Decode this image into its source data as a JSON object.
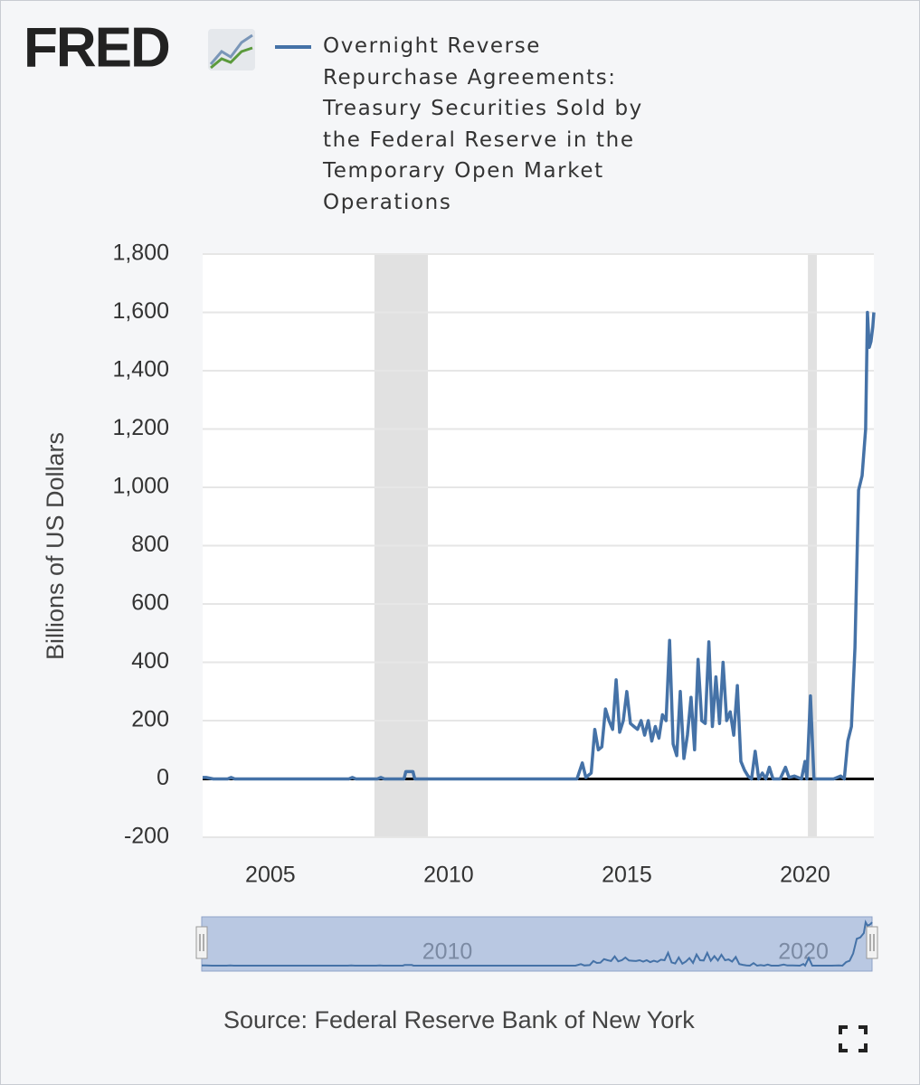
{
  "logo": "FRED",
  "chart_data": {
    "type": "line",
    "x_is_year": true,
    "series": [
      {
        "name": "Overnight Reverse Repurchase Agreements: Treasury Securities Sold by the Federal Reserve in the Temporary Open Market Operations",
        "color": "#4572a7",
        "x": [
          2003.1,
          2003.2,
          2003.4,
          2003.8,
          2003.9,
          2004.0,
          2007.2,
          2007.3,
          2007.4,
          2008.0,
          2008.1,
          2008.2,
          2008.75,
          2008.8,
          2009.0,
          2009.05,
          2013.6,
          2013.75,
          2013.85,
          2014.0,
          2014.1,
          2014.2,
          2014.3,
          2014.4,
          2014.5,
          2014.6,
          2014.7,
          2014.8,
          2014.9,
          2015.0,
          2015.1,
          2015.2,
          2015.3,
          2015.4,
          2015.5,
          2015.6,
          2015.7,
          2015.8,
          2015.9,
          2016.0,
          2016.1,
          2016.2,
          2016.3,
          2016.4,
          2016.5,
          2016.6,
          2016.7,
          2016.8,
          2016.9,
          2017.0,
          2017.1,
          2017.2,
          2017.3,
          2017.4,
          2017.5,
          2017.6,
          2017.7,
          2017.8,
          2017.9,
          2018.0,
          2018.1,
          2018.2,
          2018.3,
          2018.4,
          2018.5,
          2018.6,
          2018.7,
          2018.8,
          2018.9,
          2019.0,
          2019.1,
          2019.3,
          2019.45,
          2019.55,
          2019.7,
          2019.9,
          2020.0,
          2020.05,
          2020.15,
          2020.25,
          2020.5,
          2020.8,
          2021.0,
          2021.1,
          2021.2,
          2021.3,
          2021.4,
          2021.5,
          2021.6,
          2021.7,
          2021.75,
          2021.8,
          2021.85,
          2021.9,
          2021.93
        ],
        "values": [
          5,
          5,
          0,
          0,
          5,
          0,
          0,
          5,
          0,
          0,
          5,
          0,
          0,
          25,
          25,
          0,
          0,
          55,
          5,
          20,
          170,
          100,
          110,
          240,
          200,
          170,
          340,
          160,
          200,
          300,
          190,
          180,
          170,
          200,
          150,
          200,
          130,
          180,
          140,
          220,
          200,
          475,
          120,
          80,
          300,
          70,
          150,
          280,
          100,
          410,
          200,
          190,
          470,
          180,
          350,
          190,
          400,
          200,
          230,
          150,
          320,
          60,
          30,
          10,
          0,
          95,
          0,
          20,
          0,
          40,
          0,
          0,
          40,
          5,
          10,
          0,
          60,
          0,
          285,
          0,
          0,
          0,
          10,
          0,
          130,
          180,
          450,
          990,
          1040,
          1200,
          1600,
          1480,
          1500,
          1550,
          1600
        ]
      }
    ],
    "y_label": "Billions of US Dollars",
    "xlim": [
      2003.1,
      2021.93
    ],
    "xticks": [
      2005,
      2010,
      2015,
      2020
    ],
    "ylim": [
      -200,
      1800
    ],
    "yticks": [
      -200,
      0,
      200,
      400,
      600,
      800,
      {
        "value": 1000,
        "label": "1,000"
      },
      {
        "value": 1200,
        "label": "1,200"
      },
      {
        "value": 1400,
        "label": "1,400"
      },
      {
        "value": 1600,
        "label": "1,600"
      },
      {
        "value": 1800,
        "label": "1,800"
      }
    ],
    "grid": true,
    "recessions": [
      [
        2007.92,
        2009.42
      ],
      [
        2020.08,
        2020.33
      ]
    ],
    "navigator_ticks": [
      2010,
      2020
    ],
    "source": "Source: Federal Reserve Bank of New York"
  }
}
